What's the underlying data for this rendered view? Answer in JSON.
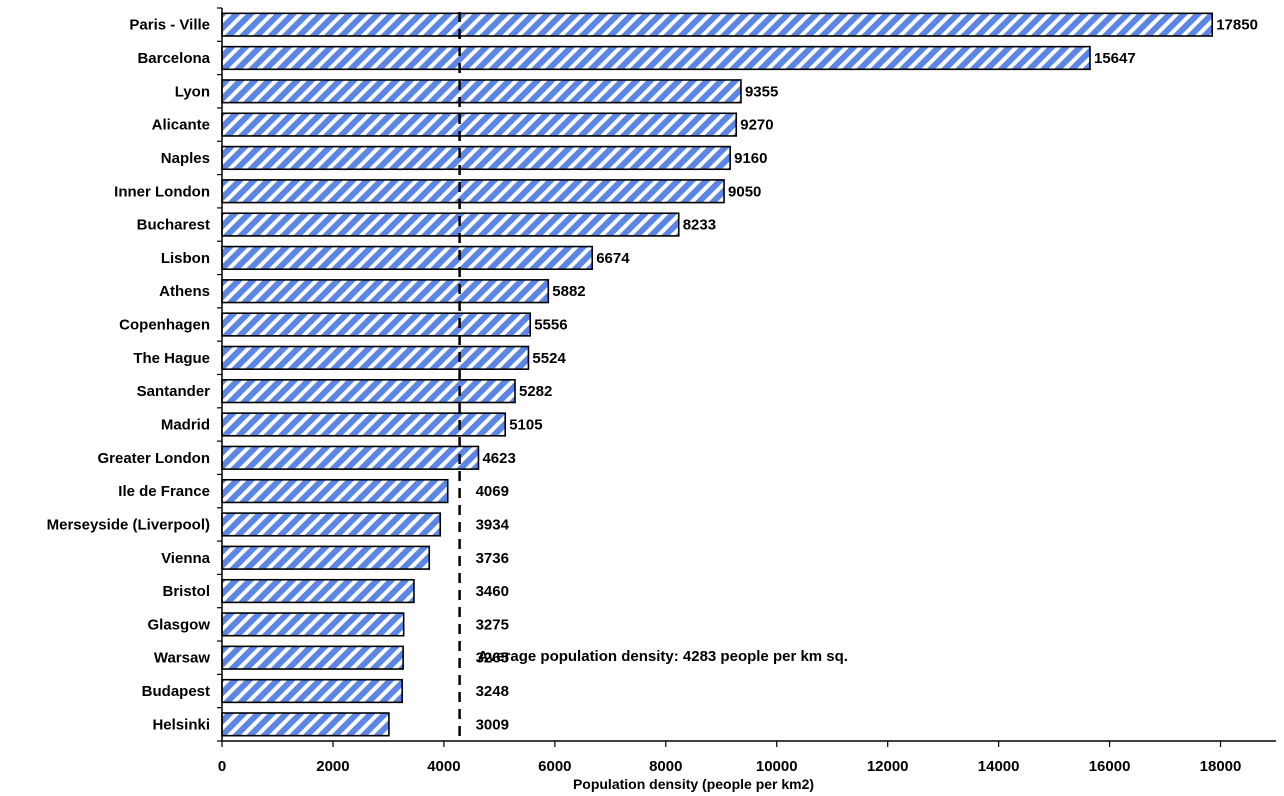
{
  "chart_data": {
    "type": "bar",
    "orientation": "horizontal",
    "title": "",
    "xlabel": "Population density (people per km2)",
    "ylabel": "",
    "xlim": [
      0,
      19000
    ],
    "xticks": [
      0,
      2000,
      4000,
      6000,
      8000,
      10000,
      12000,
      14000,
      16000,
      18000
    ],
    "grid": false,
    "legend": "none",
    "categories": [
      "Paris - Ville",
      "Barcelona",
      "Lyon",
      "Alicante",
      "Naples",
      "Inner London",
      "Bucharest",
      "Lisbon",
      "Athens",
      "Copenhagen",
      "The Hague",
      "Santander",
      "Madrid",
      "Greater  London",
      "Ile de France",
      "Merseyside (Liverpool)",
      "Vienna",
      "Bristol",
      "Glasgow",
      "Warsaw",
      "Budapest",
      "Helsinki"
    ],
    "values": [
      17850,
      15647,
      9355,
      9270,
      9160,
      9050,
      8233,
      6674,
      5882,
      5556,
      5524,
      5282,
      5105,
      4623,
      4069,
      3934,
      3736,
      3460,
      3275,
      3265,
      3248,
      3009
    ],
    "value_labels": [
      "17850",
      "15647",
      "9355",
      "9270",
      "9160",
      "9050",
      "8233",
      "6674",
      "5882",
      "5556",
      "5524",
      "5282",
      "5105",
      "4623",
      "4069",
      "3934",
      "3736",
      "3460",
      "3275",
      "3265",
      "3248",
      "3009"
    ],
    "reference_line": {
      "value": 4283,
      "label": "Average population density: 4283 people per km sq."
    },
    "colors": {
      "bar_fill": "#5b86e5",
      "bar_stripe": "#ffffff",
      "bar_outline": "#000000"
    }
  }
}
